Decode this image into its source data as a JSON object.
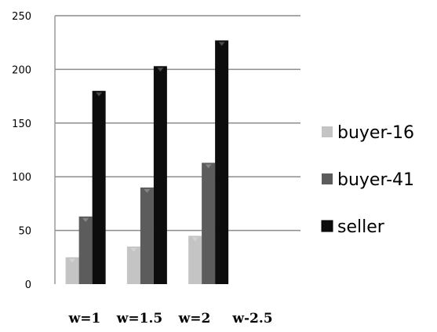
{
  "chart_data": {
    "type": "bar",
    "categories": [
      "w=1",
      "w=1.5",
      "w=2",
      "w-2.5"
    ],
    "series": [
      {
        "name": "buyer-16",
        "values": [
          25,
          35,
          45,
          null
        ],
        "color": "#c4c4c4"
      },
      {
        "name": "buyer-41",
        "values": [
          63,
          90,
          113,
          null
        ],
        "color": "#5c5c5c"
      },
      {
        "name": "seller",
        "values": [
          180,
          203,
          227,
          null
        ],
        "color": "#0d0d0d"
      }
    ],
    "title": "",
    "xlabel": "",
    "ylabel": "",
    "ylim": [
      0,
      250
    ],
    "yticks": [
      "0",
      "50",
      "100",
      "150",
      "200",
      "250"
    ],
    "grid": true,
    "legend_position": "right"
  }
}
